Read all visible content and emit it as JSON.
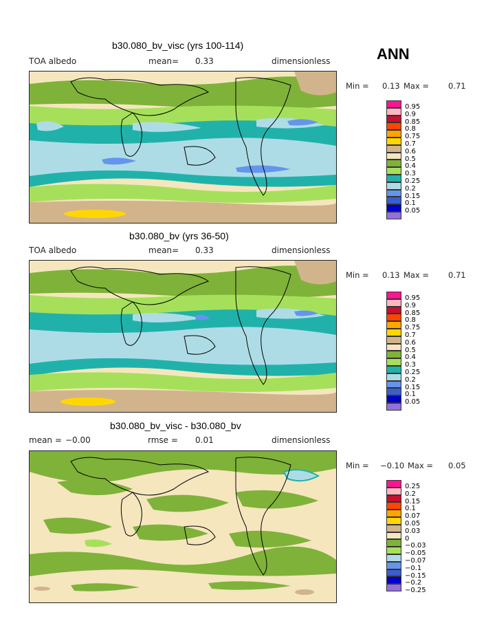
{
  "season": "ANN",
  "colors": {
    "c95": "#ff1493",
    "c90": "#ffb6c1",
    "c85": "#c8102e",
    "c80": "#ff4500",
    "c75": "#ffa500",
    "c70": "#ffd700",
    "c60": "#d2b48c",
    "c50": "#f5e6be",
    "c40": "#7fb239",
    "c30": "#a6e05a",
    "c25": "#20b2aa",
    "c20": "#aedce6",
    "c15": "#6495ed",
    "c10": "#3a5fcd",
    "c05": "#0000cd",
    "c00": "#9370db"
  },
  "panels": [
    {
      "title": "b30.080_bv_visc (yrs 100-114)",
      "left_label": "TOA albedo",
      "mid_label": "mean=",
      "mid_value": "0.33",
      "units": "dimensionless",
      "min_label": "Min =",
      "min_value": "0.13",
      "max_label": "Max =",
      "max_value": "0.71"
    },
    {
      "title": "b30.080_bv (yrs 36-50)",
      "left_label": "TOA albedo",
      "mid_label": "mean=",
      "mid_value": "0.33",
      "units": "dimensionless",
      "min_label": "Min =",
      "min_value": "0.13",
      "max_label": "Max =",
      "max_value": "0.71"
    },
    {
      "title": "b30.080_bv_visc - b30.080_bv",
      "left_label": "mean =",
      "left_value": "−0.00",
      "mid_label": "rmse =",
      "mid_value": "0.01",
      "units": "dimensionless",
      "min_label": "Min =",
      "min_value": "−0.10",
      "max_label": "Max =",
      "max_value": "0.05"
    }
  ],
  "chart_data": [
    {
      "type": "heatmap",
      "title": "b30.080_bv_visc (yrs 100-114)",
      "variable": "TOA albedo",
      "units": "dimensionless",
      "mean": 0.33,
      "min": 0.13,
      "max": 0.71,
      "legend_levels": [
        "0.95",
        "0.9",
        "0.85",
        "0.8",
        "0.75",
        "0.7",
        "0.6",
        "0.5",
        "0.4",
        "0.3",
        "0.25",
        "0.2",
        "0.15",
        "0.1",
        "0.05"
      ]
    },
    {
      "type": "heatmap",
      "title": "b30.080_bv (yrs 36-50)",
      "variable": "TOA albedo",
      "units": "dimensionless",
      "mean": 0.33,
      "min": 0.13,
      "max": 0.71,
      "legend_levels": [
        "0.95",
        "0.9",
        "0.85",
        "0.8",
        "0.75",
        "0.7",
        "0.6",
        "0.5",
        "0.4",
        "0.3",
        "0.25",
        "0.2",
        "0.15",
        "0.1",
        "0.05"
      ]
    },
    {
      "type": "heatmap",
      "title": "b30.080_bv_visc - b30.080_bv",
      "units": "dimensionless",
      "mean": -0.0,
      "rmse": 0.01,
      "min": -0.1,
      "max": 0.05,
      "legend_levels": [
        "0.25",
        "0.2",
        "0.15",
        "0.1",
        "0.07",
        "0.05",
        "0.03",
        "0",
        "−0.03",
        "−0.05",
        "−0.07",
        "−0.1",
        "−0.15",
        "−0.2",
        "−0.25"
      ]
    }
  ],
  "legend_colors_abs": [
    "#ff1493",
    "#ffb6c1",
    "#c8102e",
    "#ff4500",
    "#ffa500",
    "#ffd700",
    "#d2b48c",
    "#f5e6be",
    "#7fb239",
    "#a6e05a",
    "#20b2aa",
    "#aedce6",
    "#6495ed",
    "#3a5fcd",
    "#0000cd",
    "#9370db"
  ],
  "legend_colors_diff": [
    "#ff1493",
    "#ffb6c1",
    "#c8102e",
    "#ff4500",
    "#ffa500",
    "#ffd700",
    "#d2b48c",
    "#f5e6be",
    "#7fb239",
    "#a6e05a",
    "#aedce6",
    "#6495ed",
    "#3a5fcd",
    "#0000cd",
    "#9370db"
  ]
}
